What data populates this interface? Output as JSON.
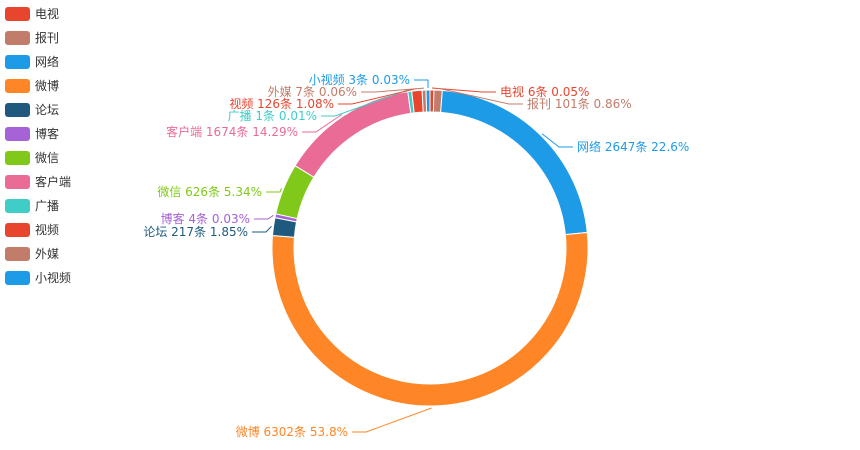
{
  "chart_data": {
    "type": "pie",
    "variant": "donut",
    "legend_position": "left",
    "series": [
      {
        "name": "电视",
        "label": "电视 6条  0.05%",
        "count": 6,
        "percent": 0.05,
        "color": "#e8452e"
      },
      {
        "name": "报刊",
        "label": "报刊 101条  0.86%",
        "count": 101,
        "percent": 0.86,
        "color": "#c27c6a"
      },
      {
        "name": "网络",
        "label": "网络 2647条  22.6%",
        "count": 2647,
        "percent": 22.6,
        "color": "#1e9be6"
      },
      {
        "name": "微博",
        "label": "微博 6302条  53.8%",
        "count": 6302,
        "percent": 53.8,
        "color": "#ff8627"
      },
      {
        "name": "论坛",
        "label": "论坛 217条  1.85%",
        "count": 217,
        "percent": 1.85,
        "color": "#1f5a7e"
      },
      {
        "name": "博客",
        "label": "博客 4条  0.03%",
        "count": 4,
        "percent": 0.03,
        "color": "#a563d5"
      },
      {
        "name": "微信",
        "label": "微信 626条  5.34%",
        "count": 626,
        "percent": 5.34,
        "color": "#80c81a"
      },
      {
        "name": "客户端",
        "label": "客户端 1674条  14.29%",
        "count": 1674,
        "percent": 14.29,
        "color": "#ea6b95"
      },
      {
        "name": "广播",
        "label": "广播 1条  0.01%",
        "count": 1,
        "percent": 0.01,
        "color": "#3fcdc8"
      },
      {
        "name": "视频",
        "label": "视频 126条  1.08%",
        "count": 126,
        "percent": 1.08,
        "color": "#e8452e"
      },
      {
        "name": "外媒",
        "label": "外媒 7条  0.06%",
        "count": 7,
        "percent": 0.06,
        "color": "#c27c6a"
      },
      {
        "name": "小视频",
        "label": "小视频 3条  0.03%",
        "count": 3,
        "percent": 0.03,
        "color": "#1e9be6"
      }
    ]
  }
}
